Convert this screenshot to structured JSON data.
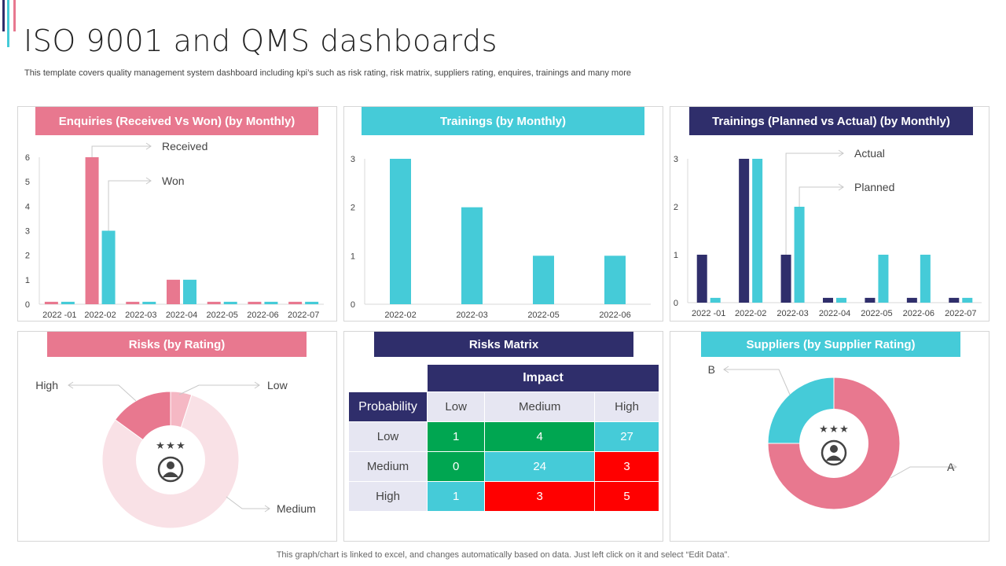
{
  "page": {
    "title": "ISO 9001 and QMS dashboards",
    "subtitle": "This template covers quality management system dashboard including kpi’s such as risk rating, risk matrix, suppliers rating, enquires, trainings and many more",
    "footer": "This graph/chart is linked to excel,  and changes automatically based on data. Just left click on it and select “Edit Data”."
  },
  "colors": {
    "pink": "#e8788f",
    "teal": "#45cbd8",
    "navy": "#2f2e6b",
    "light_pink": "#f5b8c4",
    "pale_pink": "#f9e1e6",
    "green": "#00a651",
    "red": "#ff0000",
    "lavender": "#e6e6f2"
  },
  "panels": {
    "enquiries": "Enquiries (Received Vs Won) (by Monthly)",
    "trainings": "Trainings (by Monthly)",
    "trainings_pa": "Trainings (Planned vs Actual) (by Monthly)",
    "risks": "Risks (by Rating)",
    "matrix": "Risks Matrix",
    "suppliers": "Suppliers (by Supplier Rating)"
  },
  "chart_data": [
    {
      "id": "enquiries",
      "type": "bar",
      "title": "Enquiries (Received Vs Won) (by Monthly)",
      "categories": [
        "2022 -01",
        "2022-02",
        "2022-03",
        "2022-04",
        "2022-05",
        "2022-06",
        "2022-07"
      ],
      "series": [
        {
          "name": "Received",
          "color": "#e8788f",
          "values": [
            0.1,
            6,
            0.1,
            1,
            0.1,
            0.1,
            0.1
          ]
        },
        {
          "name": "Won",
          "color": "#45cbd8",
          "values": [
            0.1,
            3,
            0.1,
            1,
            0.1,
            0.1,
            0.1
          ]
        }
      ],
      "ylim": [
        0,
        6
      ],
      "yticks": [
        "0",
        "1",
        "2",
        "3",
        "4",
        "5",
        "6"
      ]
    },
    {
      "id": "trainings",
      "type": "bar",
      "title": "Trainings (by Monthly)",
      "categories": [
        "2022-02",
        "2022-03",
        "2022-05",
        "2022-06"
      ],
      "series": [
        {
          "color": "#45cbd8",
          "values": [
            3,
            2,
            1,
            1
          ]
        }
      ],
      "ylim": [
        0,
        3
      ],
      "yticks": [
        "0",
        "1",
        "2",
        "3"
      ]
    },
    {
      "id": "trainings_pa",
      "type": "bar",
      "title": "Trainings (Planned vs Actual) (by Monthly)",
      "categories": [
        "2022 -01",
        "2022-02",
        "2022-03",
        "2022-04",
        "2022-05",
        "2022-06",
        "2022-07"
      ],
      "series": [
        {
          "name": "Actual",
          "color": "#2f2e6b",
          "values": [
            1,
            3,
            1,
            0.1,
            0.1,
            0.1,
            0.1
          ]
        },
        {
          "name": "Planned",
          "color": "#45cbd8",
          "values": [
            0.1,
            3,
            2,
            0.1,
            1,
            1,
            0.1
          ]
        }
      ],
      "ylim": [
        0,
        3
      ],
      "yticks": [
        "0",
        "1",
        "2",
        "3"
      ]
    },
    {
      "id": "risks",
      "type": "pie",
      "title": "Risks (by Rating)",
      "slices": [
        {
          "label": "Low",
          "value": 5,
          "color": "#f5b8c4"
        },
        {
          "label": "Medium",
          "value": 80,
          "color": "#f9e1e6"
        },
        {
          "label": "High",
          "value": 15,
          "color": "#e8788f"
        }
      ]
    },
    {
      "id": "matrix",
      "type": "table",
      "title": "Risks Matrix",
      "header": "Impact",
      "corner": "Probability",
      "columns": [
        "Low",
        "Medium",
        "High"
      ],
      "rows": [
        {
          "label": "Low",
          "values": [
            "1",
            "4",
            "27"
          ],
          "colors": [
            "#00a651",
            "#00a651",
            "#45cbd8"
          ]
        },
        {
          "label": "Medium",
          "values": [
            "0",
            "24",
            "3"
          ],
          "colors": [
            "#00a651",
            "#45cbd8",
            "#ff0000"
          ]
        },
        {
          "label": "High",
          "values": [
            "1",
            "3",
            "5"
          ],
          "colors": [
            "#45cbd8",
            "#ff0000",
            "#ff0000"
          ]
        }
      ]
    },
    {
      "id": "suppliers",
      "type": "pie",
      "title": "Suppliers (by Supplier Rating)",
      "slices": [
        {
          "label": "A",
          "value": 75,
          "color": "#e8788f"
        },
        {
          "label": "B",
          "value": 25,
          "color": "#45cbd8"
        }
      ]
    }
  ]
}
